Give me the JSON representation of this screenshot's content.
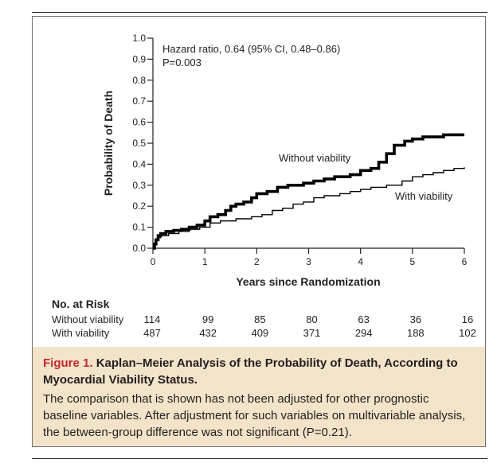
{
  "chart_data": {
    "type": "line",
    "annotation_hr": "Hazard ratio, 0.64 (95% CI, 0.48–0.86)",
    "annotation_p": "P=0.003",
    "xlabel": "Years since Randomization",
    "ylabel": "Probability of Death",
    "xlim": [
      0,
      6
    ],
    "ylim": [
      0,
      1.0
    ],
    "x_ticks": [
      "0",
      "1",
      "2",
      "3",
      "4",
      "5",
      "6"
    ],
    "y_ticks": [
      "0.0",
      "0.1",
      "0.2",
      "0.3",
      "0.4",
      "0.5",
      "0.6",
      "0.7",
      "0.8",
      "0.9",
      "1.0"
    ],
    "grid": false,
    "series": [
      {
        "name": "Without viability",
        "color": "#000000",
        "points": [
          [
            0,
            0
          ],
          [
            0.03,
            0.02
          ],
          [
            0.06,
            0.04
          ],
          [
            0.1,
            0.06
          ],
          [
            0.15,
            0.07
          ],
          [
            0.25,
            0.08
          ],
          [
            0.4,
            0.085
          ],
          [
            0.55,
            0.09
          ],
          [
            0.7,
            0.1
          ],
          [
            0.85,
            0.11
          ],
          [
            1.0,
            0.13
          ],
          [
            1.1,
            0.15
          ],
          [
            1.25,
            0.16
          ],
          [
            1.4,
            0.18
          ],
          [
            1.5,
            0.2
          ],
          [
            1.6,
            0.21
          ],
          [
            1.75,
            0.22
          ],
          [
            1.9,
            0.24
          ],
          [
            2.0,
            0.26
          ],
          [
            2.2,
            0.27
          ],
          [
            2.4,
            0.29
          ],
          [
            2.6,
            0.3
          ],
          [
            2.9,
            0.31
          ],
          [
            3.1,
            0.32
          ],
          [
            3.3,
            0.33
          ],
          [
            3.5,
            0.34
          ],
          [
            3.8,
            0.35
          ],
          [
            4.0,
            0.37
          ],
          [
            4.2,
            0.38
          ],
          [
            4.35,
            0.41
          ],
          [
            4.5,
            0.45
          ],
          [
            4.65,
            0.49
          ],
          [
            4.85,
            0.51
          ],
          [
            5.0,
            0.52
          ],
          [
            5.2,
            0.53
          ],
          [
            5.6,
            0.54
          ],
          [
            6.0,
            0.54
          ]
        ]
      },
      {
        "name": "With viability",
        "color": "#000000",
        "points": [
          [
            0,
            0
          ],
          [
            0.03,
            0.02
          ],
          [
            0.06,
            0.04
          ],
          [
            0.1,
            0.05
          ],
          [
            0.15,
            0.06
          ],
          [
            0.3,
            0.07
          ],
          [
            0.5,
            0.08
          ],
          [
            0.7,
            0.09
          ],
          [
            0.9,
            0.1
          ],
          [
            1.1,
            0.12
          ],
          [
            1.3,
            0.13
          ],
          [
            1.6,
            0.14
          ],
          [
            1.9,
            0.15
          ],
          [
            2.1,
            0.16
          ],
          [
            2.3,
            0.18
          ],
          [
            2.5,
            0.19
          ],
          [
            2.7,
            0.21
          ],
          [
            2.9,
            0.22
          ],
          [
            3.1,
            0.24
          ],
          [
            3.3,
            0.25
          ],
          [
            3.6,
            0.26
          ],
          [
            3.8,
            0.27
          ],
          [
            4.0,
            0.28
          ],
          [
            4.2,
            0.29
          ],
          [
            4.5,
            0.3
          ],
          [
            4.8,
            0.32
          ],
          [
            5.0,
            0.34
          ],
          [
            5.2,
            0.35
          ],
          [
            5.4,
            0.36
          ],
          [
            5.6,
            0.37
          ],
          [
            5.8,
            0.38
          ],
          [
            6.0,
            0.385
          ]
        ]
      }
    ]
  },
  "risk_table": {
    "title": "No. at Risk",
    "rows": [
      {
        "label": "Without viability",
        "values": [
          "114",
          "99",
          "85",
          "80",
          "63",
          "36",
          "16"
        ]
      },
      {
        "label": "With viability",
        "values": [
          "487",
          "432",
          "409",
          "371",
          "294",
          "188",
          "102"
        ]
      }
    ]
  },
  "caption": {
    "figure_label": "Figure 1.",
    "title": "Kaplan–Meier Analysis of the Probability of Death, According to Myocardial Viability Status.",
    "body": "The comparison that is shown has not been adjusted for other prognostic baseline variables. After adjustment for such variables on multivariable analysis, the between-group difference was not significant (P=0.21).",
    "background": "#f3e3c9",
    "label_color": "#c1272d"
  }
}
